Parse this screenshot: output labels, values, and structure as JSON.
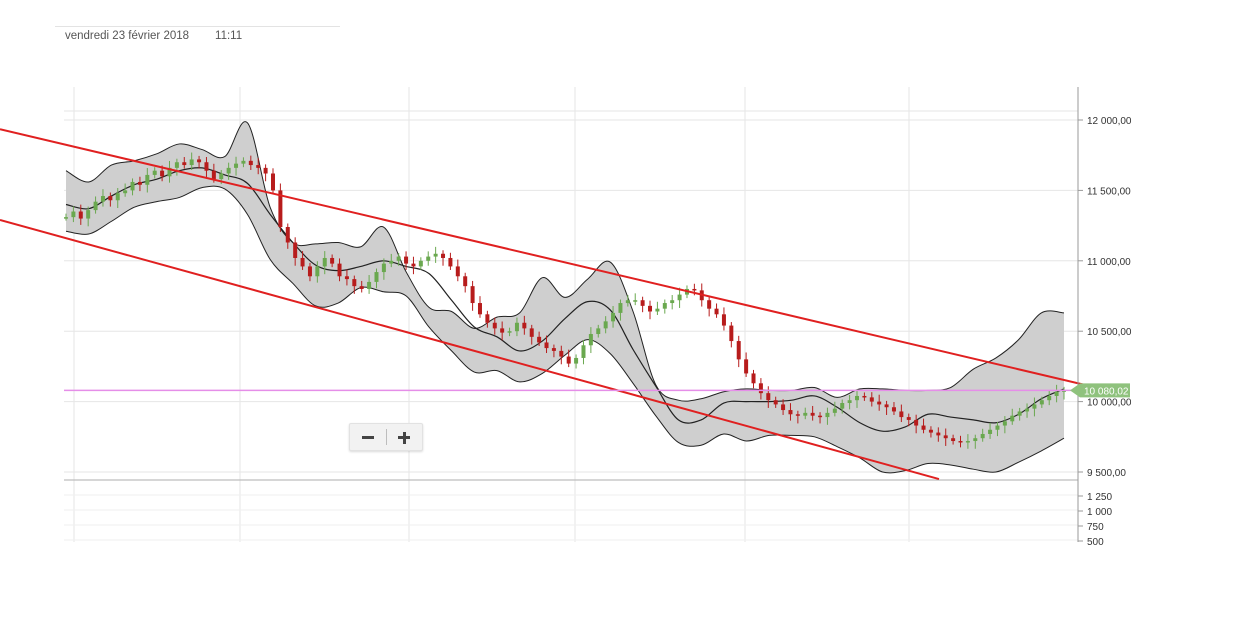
{
  "header": {
    "date": "vendredi 23 février 2018",
    "time": "11:11"
  },
  "chart_data": {
    "type": "candlestick",
    "price_axis": {
      "ticks": [
        {
          "value": 12000,
          "label": "12 000,00"
        },
        {
          "value": 11500,
          "label": "11 500,00"
        },
        {
          "value": 11000,
          "label": "11 000,00"
        },
        {
          "value": 10500,
          "label": "10 500,00"
        },
        {
          "value": 10000,
          "label": "10 000,00"
        },
        {
          "value": 9500,
          "label": "9 500,00"
        }
      ],
      "range": [
        9450,
        12220
      ]
    },
    "volume_axis": {
      "ticks": [
        {
          "value": 1250,
          "label": "1 250"
        },
        {
          "value": 1000,
          "label": "1 000"
        },
        {
          "value": 750,
          "label": "750"
        },
        {
          "value": 500,
          "label": "500"
        }
      ]
    },
    "current_price": {
      "value": 10080.02,
      "label": "10 080,02",
      "color": "#8fc27d"
    },
    "horizontal_line": {
      "value": 10080,
      "color": "#e58ee8"
    },
    "colors": {
      "up": "#6aa84f",
      "down": "#b71c1c",
      "band_fill": "#cfcfcf",
      "band_line": "#222222",
      "trend_line": "#e02020",
      "grid": "#e6e6e6"
    },
    "bands": {
      "upper_start": 11640,
      "upper": [
        11640,
        11560,
        11680,
        11710,
        11760,
        11830,
        11790,
        11740,
        11980,
        11380,
        11130,
        11120,
        11130,
        11100,
        11240,
        10920,
        10670,
        10640,
        10520,
        10600,
        10630,
        10880,
        10740,
        10870,
        10990,
        10640,
        10120,
        10010,
        10020,
        10070,
        10090,
        10080,
        10080,
        10100,
        10030,
        10090,
        10090,
        10080,
        10080,
        10100,
        10230,
        10310,
        10440,
        10630,
        10630
      ],
      "middle": [
        11400,
        11370,
        11460,
        11540,
        11580,
        11640,
        11660,
        11610,
        11550,
        11330,
        11130,
        10970,
        10930,
        10960,
        11000,
        10960,
        10910,
        10720,
        10530,
        10460,
        10360,
        10430,
        10590,
        10710,
        10650,
        10370,
        10110,
        9870,
        9870,
        9990,
        10000,
        10000,
        10010,
        10040,
        9960,
        9850,
        9790,
        9820,
        9910,
        9890,
        9870,
        9850,
        9910,
        10020,
        10090
      ],
      "lower": [
        11210,
        11190,
        11280,
        11380,
        11420,
        11450,
        11520,
        11510,
        11330,
        11010,
        10840,
        10680,
        10700,
        10810,
        10780,
        10750,
        10530,
        10360,
        10210,
        10220,
        10140,
        10200,
        10330,
        10440,
        10340,
        10130,
        9900,
        9710,
        9690,
        9770,
        9720,
        9760,
        9760,
        9750,
        9680,
        9600,
        9500,
        9510,
        9560,
        9550,
        9520,
        9500,
        9570,
        9650,
        9740
      ]
    },
    "trend_lines": [
      {
        "from": [
          -20,
          11920
        ],
        "to": [
          1099,
          10095
        ]
      },
      {
        "from": [
          -20,
          11290
        ],
        "to": [
          939,
          9450
        ]
      }
    ],
    "candles": {
      "start": 11310,
      "step": 1,
      "values": [
        11310,
        11350,
        11300,
        11360,
        11420,
        11460,
        11430,
        11480,
        11500,
        11560,
        11540,
        11610,
        11640,
        11600,
        11660,
        11700,
        11680,
        11720,
        11700,
        11640,
        11580,
        11620,
        11660,
        11690,
        11710,
        11680,
        11660,
        11620,
        11500,
        11240,
        11130,
        11020,
        10960,
        10890,
        10960,
        11020,
        10980,
        10890,
        10870,
        10820,
        10800,
        10850,
        10920,
        10980,
        11000,
        11030,
        10980,
        10960,
        11000,
        11030,
        11050,
        11020,
        10960,
        10890,
        10820,
        10700,
        10620,
        10560,
        10520,
        10490,
        10500,
        10560,
        10520,
        10460,
        10420,
        10380,
        10360,
        10320,
        10270,
        10310,
        10400,
        10480,
        10520,
        10570,
        10630,
        10700,
        10720,
        10720,
        10680,
        10640,
        10660,
        10700,
        10720,
        10760,
        10800,
        10790,
        10720,
        10660,
        10620,
        10540,
        10430,
        10300,
        10200,
        10130,
        10060,
        10010,
        9980,
        9940,
        9910,
        9900,
        9920,
        9900,
        9890,
        9920,
        9950,
        9990,
        10010,
        10040,
        10030,
        10000,
        9980,
        9960,
        9930,
        9890,
        9870,
        9830,
        9800,
        9780,
        9760,
        9740,
        9720,
        9710,
        9720,
        9740,
        9770,
        9800,
        9830,
        9860,
        9900,
        9930,
        9950,
        9980,
        10010,
        10040,
        10070,
        10080
      ]
    }
  }
}
